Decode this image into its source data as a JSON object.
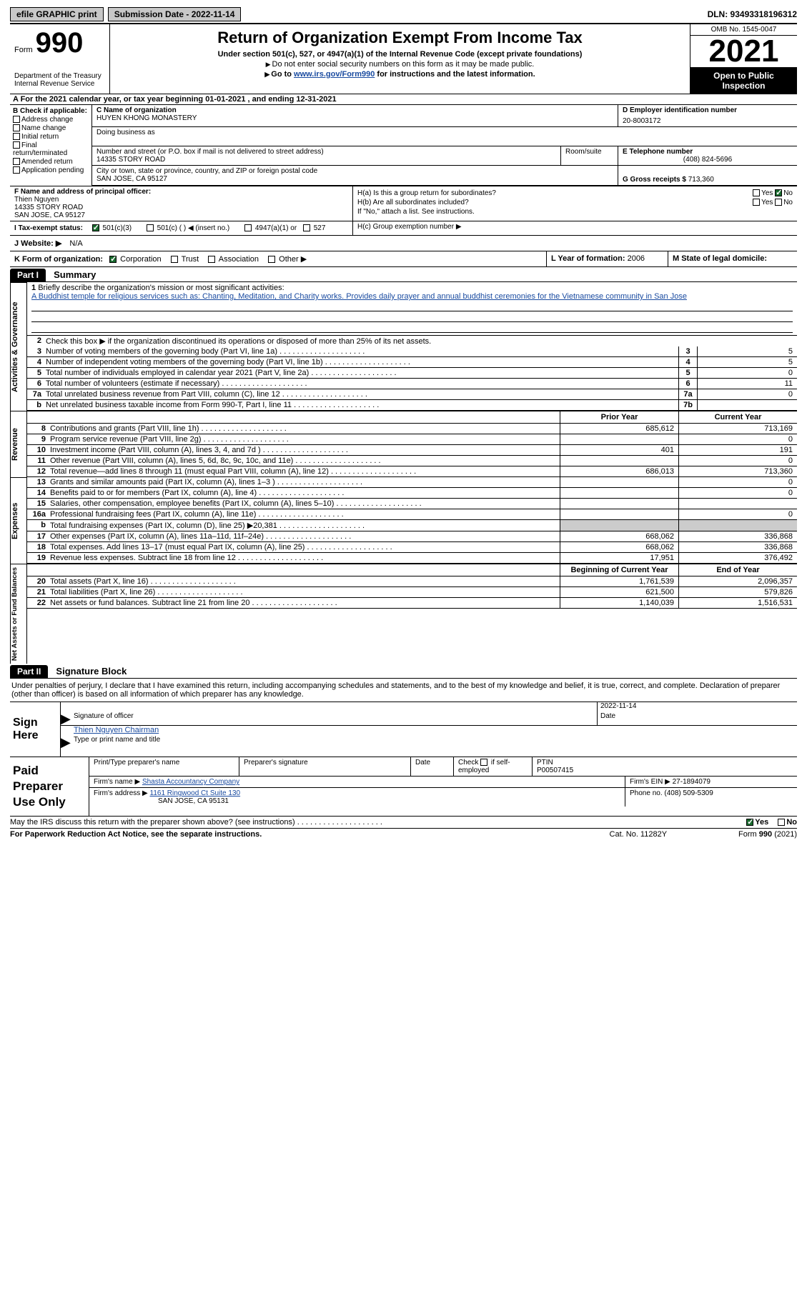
{
  "topbar": {
    "btn1": "efile GRAPHIC print",
    "btn2": "Submission Date - 2022-11-14",
    "dln": "DLN: 93493318196312"
  },
  "header": {
    "form_word": "Form",
    "form_num": "990",
    "dept": "Department of the Treasury Internal Revenue Service",
    "title": "Return of Organization Exempt From Income Tax",
    "sub": "Under section 501(c), 527, or 4947(a)(1) of the Internal Revenue Code (except private foundations)",
    "note1": "Do not enter social security numbers on this form as it may be made public.",
    "note2_pre": "Go to ",
    "note2_link": "www.irs.gov/Form990",
    "note2_post": " for instructions and the latest information.",
    "omb": "OMB No. 1545-0047",
    "year": "2021",
    "open": "Open to Public Inspection"
  },
  "lineA": "A For the 2021 calendar year, or tax year beginning 01-01-2021    , and ending 12-31-2021",
  "sectionB": {
    "head": "B Check if applicable:",
    "items": [
      "Address change",
      "Name change",
      "Initial return",
      "Final return/terminated",
      "Amended return",
      "Application pending"
    ]
  },
  "sectionC": {
    "name_lbl": "C Name of organization",
    "name": "HUYEN KHONG MONASTERY",
    "dba_lbl": "Doing business as",
    "addr_lbl": "Number and street (or P.O. box if mail is not delivered to street address)",
    "room_lbl": "Room/suite",
    "addr": "14335 STORY ROAD",
    "city_lbl": "City or town, state or province, country, and ZIP or foreign postal code",
    "city": "SAN JOSE, CA  95127"
  },
  "sectionD": {
    "ein_lbl": "D Employer identification number",
    "ein": "20-8003172",
    "tel_lbl": "E Telephone number",
    "tel": "(408) 824-5696",
    "gross_lbl": "G Gross receipts $",
    "gross": "713,360"
  },
  "sectionF": {
    "lbl": "F  Name and address of principal officer:",
    "name": "Thien Nguyen",
    "addr1": "14335 STORY ROAD",
    "addr2": "SAN JOSE, CA  95127"
  },
  "sectionH": {
    "ha": "H(a)  Is this a group return for subordinates?",
    "hb": "H(b)  Are all subordinates included?",
    "hb_note": "If \"No,\" attach a list. See instructions.",
    "hc": "H(c)  Group exemption number ▶",
    "yes": "Yes",
    "no": "No"
  },
  "sectionI": {
    "lbl": "I    Tax-exempt status:",
    "o1": "501(c)(3)",
    "o2": "501(c) (  ) ◀ (insert no.)",
    "o3": "4947(a)(1) or",
    "o4": "527"
  },
  "sectionJ": {
    "lbl": "J   Website: ▶",
    "val": "N/A"
  },
  "sectionK": {
    "lbl": "K Form of organization:",
    "o1": "Corporation",
    "o2": "Trust",
    "o3": "Association",
    "o4": "Other ▶"
  },
  "sectionL": {
    "lbl": "L Year of formation:",
    "val": "2006"
  },
  "sectionM": {
    "lbl": "M State of legal domicile:"
  },
  "part1": {
    "bar": "Part I",
    "title": "Summary"
  },
  "vtabs": {
    "ag": "Activities & Governance",
    "rev": "Revenue",
    "exp": "Expenses",
    "net": "Net Assets or Fund Balances"
  },
  "mission": {
    "lbl": "Briefly describe the organization's mission or most significant activities:",
    "text": "A Buddhist temple for religious services such as: Chanting, Meditation, and Charity works. Provides daily prayer and annual buddhist ceremonies for the Vietnamese community in San Jose"
  },
  "line2": "Check this box ▶        if the organization discontinued its operations or disposed of more than 25% of its net assets.",
  "lines_ag": [
    {
      "n": "3",
      "d": "Number of voting members of the governing body (Part VI, line 1a)",
      "box": "3",
      "v": "5"
    },
    {
      "n": "4",
      "d": "Number of independent voting members of the governing body (Part VI, line 1b)",
      "box": "4",
      "v": "5"
    },
    {
      "n": "5",
      "d": "Total number of individuals employed in calendar year 2021 (Part V, line 2a)",
      "box": "5",
      "v": "0"
    },
    {
      "n": "6",
      "d": "Total number of volunteers (estimate if necessary)",
      "box": "6",
      "v": "11"
    },
    {
      "n": "7a",
      "d": "Total unrelated business revenue from Part VIII, column (C), line 12",
      "box": "7a",
      "v": "0"
    },
    {
      "n": "b",
      "d": "Net unrelated business taxable income from Form 990-T, Part I, line 11",
      "box": "7b",
      "v": ""
    }
  ],
  "col_headers": {
    "prior": "Prior Year",
    "current": "Current Year",
    "beg": "Beginning of Current Year",
    "end": "End of Year"
  },
  "rev": [
    {
      "n": "8",
      "d": "Contributions and grants (Part VIII, line 1h)",
      "p": "685,612",
      "c": "713,169"
    },
    {
      "n": "9",
      "d": "Program service revenue (Part VIII, line 2g)",
      "p": "",
      "c": "0"
    },
    {
      "n": "10",
      "d": "Investment income (Part VIII, column (A), lines 3, 4, and 7d )",
      "p": "401",
      "c": "191"
    },
    {
      "n": "11",
      "d": "Other revenue (Part VIII, column (A), lines 5, 6d, 8c, 9c, 10c, and 11e)",
      "p": "",
      "c": "0"
    },
    {
      "n": "12",
      "d": "Total revenue—add lines 8 through 11 (must equal Part VIII, column (A), line 12)",
      "p": "686,013",
      "c": "713,360"
    }
  ],
  "exp": [
    {
      "n": "13",
      "d": "Grants and similar amounts paid (Part IX, column (A), lines 1–3 )",
      "p": "",
      "c": "0"
    },
    {
      "n": "14",
      "d": "Benefits paid to or for members (Part IX, column (A), line 4)",
      "p": "",
      "c": "0"
    },
    {
      "n": "15",
      "d": "Salaries, other compensation, employee benefits (Part IX, column (A), lines 5–10)",
      "p": "",
      "c": ""
    },
    {
      "n": "16a",
      "d": "Professional fundraising fees (Part IX, column (A), line 11e)",
      "p": "",
      "c": "0"
    },
    {
      "n": "b",
      "d": "Total fundraising expenses (Part IX, column (D), line 25) ▶20,381",
      "p": "GREY",
      "c": "GREY"
    },
    {
      "n": "17",
      "d": "Other expenses (Part IX, column (A), lines 11a–11d, 11f–24e)",
      "p": "668,062",
      "c": "336,868"
    },
    {
      "n": "18",
      "d": "Total expenses. Add lines 13–17 (must equal Part IX, column (A), line 25)",
      "p": "668,062",
      "c": "336,868"
    },
    {
      "n": "19",
      "d": "Revenue less expenses. Subtract line 18 from line 12",
      "p": "17,951",
      "c": "376,492"
    }
  ],
  "net": [
    {
      "n": "20",
      "d": "Total assets (Part X, line 16)",
      "p": "1,761,539",
      "c": "2,096,357"
    },
    {
      "n": "21",
      "d": "Total liabilities (Part X, line 26)",
      "p": "621,500",
      "c": "579,826"
    },
    {
      "n": "22",
      "d": "Net assets or fund balances. Subtract line 21 from line 20",
      "p": "1,140,039",
      "c": "1,516,531"
    }
  ],
  "part2": {
    "bar": "Part II",
    "title": "Signature Block"
  },
  "sig_text": "Under penalties of perjury, I declare that I have examined this return, including accompanying schedules and statements, and to the best of my knowledge and belief, it is true, correct, and complete. Declaration of preparer (other than officer) is based on all information of which preparer has any knowledge.",
  "sign": {
    "label": "Sign Here",
    "sig_lbl": "Signature of officer",
    "date_lbl": "Date",
    "date_val": "2022-11-14",
    "name_val": "Thien Nguyen Chairman",
    "name_lbl": "Type or print name and title"
  },
  "paid": {
    "label": "Paid Preparer Use Only",
    "h1": "Print/Type preparer's name",
    "h2": "Preparer's signature",
    "h3": "Date",
    "h4_pre": "Check         if self-employed",
    "h5": "PTIN",
    "ptin": "P00507415",
    "firm_name_lbl": "Firm's name     ▶",
    "firm_name": "Shasta Accountancy Company",
    "firm_ein_lbl": "Firm's EIN ▶",
    "firm_ein": "27-1894079",
    "firm_addr_lbl": "Firm's address ▶",
    "firm_addr1": "1161 Ringwood Ct Suite 130",
    "firm_addr2": "SAN JOSE, CA  95131",
    "phone_lbl": "Phone no.",
    "phone": "(408) 509-5309"
  },
  "footer1": {
    "q": "May the IRS discuss this return with the preparer shown above? (see instructions)",
    "yes": "Yes",
    "no": "No"
  },
  "footer2": {
    "l": "For Paperwork Reduction Act Notice, see the separate instructions.",
    "m": "Cat. No. 11282Y",
    "r": "Form 990 (2021)"
  }
}
